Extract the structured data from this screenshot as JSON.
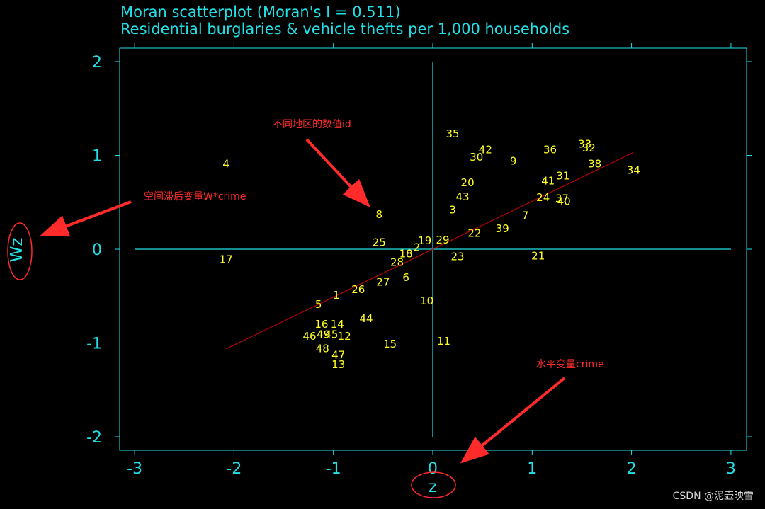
{
  "chart_data": {
    "type": "scatter",
    "title": "Moran scatterplot (Moran's I = 0.511)",
    "subtitle": "Residential burglaries & vehicle thefts per 1,000 households",
    "xlabel": "z",
    "ylabel": "Wz",
    "xlim": [
      -3,
      3
    ],
    "ylim": [
      -2,
      2
    ],
    "xticks": [
      "-3",
      "-2",
      "-1",
      "0",
      "1",
      "2",
      "3"
    ],
    "yticks": [
      "-2",
      "-1",
      "0",
      "1",
      "2"
    ],
    "reference_lines": {
      "x": 0,
      "y": 0
    },
    "fit_line": {
      "slope": 0.511,
      "x_range": [
        -2.08,
        2.02
      ]
    },
    "points": [
      {
        "id": "1",
        "x": -0.97,
        "y": -0.49
      },
      {
        "id": "2",
        "x": -0.16,
        "y": 0.02
      },
      {
        "id": "3",
        "x": 0.2,
        "y": 0.42
      },
      {
        "id": "4",
        "x": -2.08,
        "y": 0.91
      },
      {
        "id": "5",
        "x": -1.15,
        "y": -0.59
      },
      {
        "id": "6",
        "x": -0.27,
        "y": -0.3
      },
      {
        "id": "7",
        "x": 0.93,
        "y": 0.36
      },
      {
        "id": "8",
        "x": -0.54,
        "y": 0.37
      },
      {
        "id": "9",
        "x": 0.81,
        "y": 0.94
      },
      {
        "id": "10",
        "x": -0.06,
        "y": -0.55
      },
      {
        "id": "11",
        "x": 0.11,
        "y": -0.98
      },
      {
        "id": "12",
        "x": -0.89,
        "y": -0.93
      },
      {
        "id": "13",
        "x": -0.95,
        "y": -1.23
      },
      {
        "id": "14",
        "x": -0.96,
        "y": -0.8
      },
      {
        "id": "15",
        "x": -0.43,
        "y": -1.01
      },
      {
        "id": "16",
        "x": -1.12,
        "y": -0.8
      },
      {
        "id": "17",
        "x": -2.08,
        "y": -0.11
      },
      {
        "id": "18",
        "x": -0.27,
        "y": -0.05
      },
      {
        "id": "19",
        "x": -0.08,
        "y": 0.09
      },
      {
        "id": "20",
        "x": 0.35,
        "y": 0.71
      },
      {
        "id": "21",
        "x": 1.06,
        "y": -0.07
      },
      {
        "id": "22",
        "x": 0.42,
        "y": 0.17
      },
      {
        "id": "23",
        "x": 0.25,
        "y": -0.08
      },
      {
        "id": "24",
        "x": 1.11,
        "y": 0.55
      },
      {
        "id": "25",
        "x": -0.54,
        "y": 0.07
      },
      {
        "id": "26",
        "x": -0.75,
        "y": -0.43
      },
      {
        "id": "27",
        "x": -0.5,
        "y": -0.35
      },
      {
        "id": "28",
        "x": -0.36,
        "y": -0.14
      },
      {
        "id": "29",
        "x": 0.1,
        "y": 0.1
      },
      {
        "id": "30",
        "x": 0.44,
        "y": 0.98
      },
      {
        "id": "31",
        "x": 1.31,
        "y": 0.78
      },
      {
        "id": "32",
        "x": 1.57,
        "y": 1.08
      },
      {
        "id": "33",
        "x": 1.53,
        "y": 1.12
      },
      {
        "id": "34",
        "x": 2.02,
        "y": 0.84
      },
      {
        "id": "35",
        "x": 0.2,
        "y": 1.23
      },
      {
        "id": "36",
        "x": 1.18,
        "y": 1.06
      },
      {
        "id": "37",
        "x": 1.3,
        "y": 0.54
      },
      {
        "id": "38",
        "x": 1.63,
        "y": 0.91
      },
      {
        "id": "39",
        "x": 0.7,
        "y": 0.22
      },
      {
        "id": "40",
        "x": 1.32,
        "y": 0.51
      },
      {
        "id": "41",
        "x": 1.16,
        "y": 0.73
      },
      {
        "id": "42",
        "x": 0.53,
        "y": 1.06
      },
      {
        "id": "43",
        "x": 0.3,
        "y": 0.56
      },
      {
        "id": "44",
        "x": -0.67,
        "y": -0.74
      },
      {
        "id": "45",
        "x": -1.02,
        "y": -0.91
      },
      {
        "id": "46",
        "x": -1.24,
        "y": -0.93
      },
      {
        "id": "48",
        "x": -1.11,
        "y": -1.06
      },
      {
        "id": "47",
        "x": -0.95,
        "y": -1.13
      },
      {
        "id": "49",
        "x": -1.1,
        "y": -0.91
      }
    ]
  },
  "annotations": {
    "id_note": "不同地区的数值id",
    "lag_note": "空间滞后变量W*crime",
    "crime_note": "水平变量crime"
  },
  "watermark": "CSDN @泥壶映雪",
  "colors": {
    "background": "#000000",
    "axes": "#22e0e6",
    "points": "#ffff22",
    "fit_line": "#c00000",
    "annotation": "#ff2b2b"
  }
}
